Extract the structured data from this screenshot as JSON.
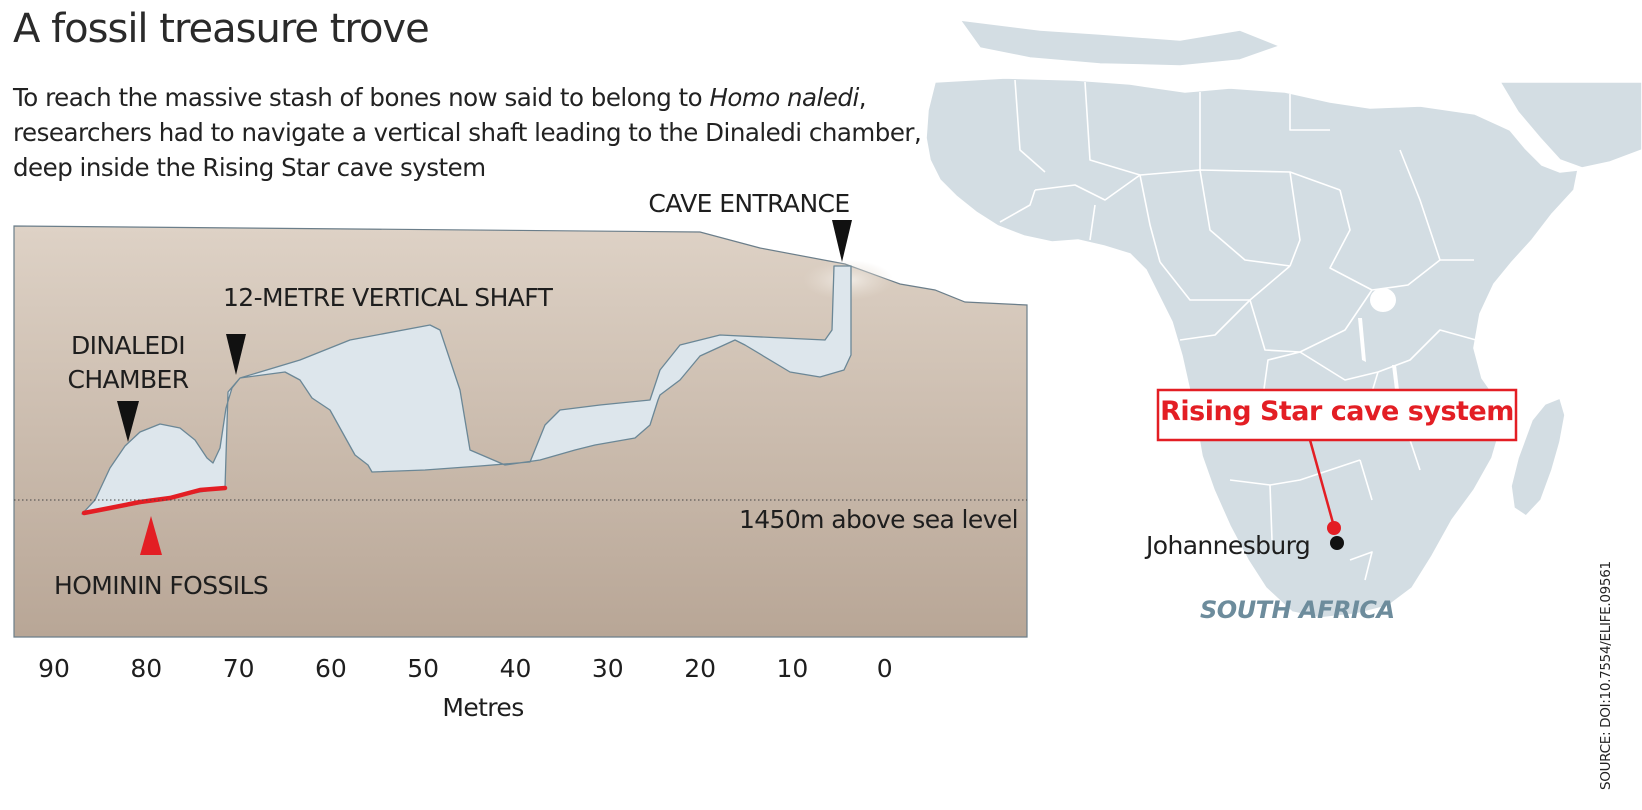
{
  "title": "A fossil treasure trove",
  "subtitle": {
    "part1": "To reach the massive stash of bones now said to belong to ",
    "italic": "Homo naledi",
    "part2": ", researchers had to navigate a vertical shaft leading to the Dinaledi chamber, deep inside the Rising Star cave system"
  },
  "cave": {
    "labels": {
      "entrance": "CAVE ENTRANCE",
      "shaft": "12-METRE VERTICAL SHAFT",
      "chamber_line1": "DINALEDI",
      "chamber_line2": "CHAMBER",
      "fossils": "HOMININ FOSSILS",
      "sea_level": "1450m above sea level"
    },
    "x_axis": {
      "ticks": [
        "90",
        "80",
        "70",
        "60",
        "50",
        "40",
        "30",
        "20",
        "10",
        "0"
      ],
      "label": "Metres"
    },
    "colors": {
      "ground_top": "#ded2c6",
      "ground_bottom": "#b8a696",
      "cave": "#dde6ec",
      "fossils": "#e31e24",
      "marker": "#111111"
    }
  },
  "map": {
    "callout": "Rising Star cave system",
    "city": "Johannesburg",
    "country": "SOUTH AFRICA",
    "colors": {
      "land": "#d3dde3",
      "callout": "#e31e24",
      "country_label": "#6d8c9c"
    }
  },
  "source": "SOURCE: DOI:10.7554/ELIFE.09561"
}
